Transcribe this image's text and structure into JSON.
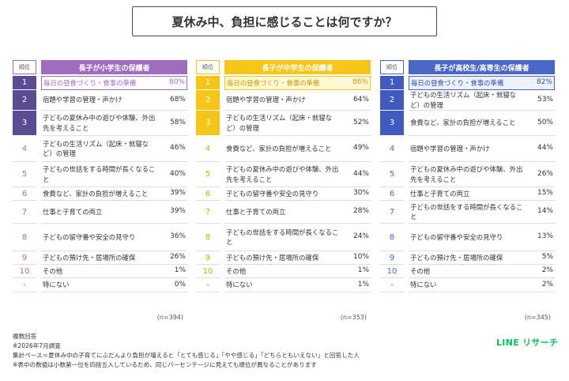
{
  "title": "夏休み中、負担に感じることは何ですか？",
  "rank_header": "順位",
  "panels": [
    {
      "title": "長子が小学生の保護者",
      "accent": "#a06cc0",
      "rank_bg": "#5b4b93",
      "first_text": "#a06cc0",
      "first_bg": "#ffffff",
      "rank_text": "#a06cc0",
      "n": "(n=394)",
      "rows": [
        {
          "rank": "1",
          "label": "毎日の昼食づくり・食事の準備",
          "pct": "80%"
        },
        {
          "rank": "2",
          "label": "宿題や学習の管理・声かけ",
          "pct": "68%"
        },
        {
          "rank": "3",
          "label": "子どもの夏休み中の遊びや体験、外出先を考えること",
          "pct": "58%"
        },
        {
          "rank": "4",
          "label": "子どもの生活リズム（起床・就寝など）の管理",
          "pct": "46%"
        },
        {
          "rank": "5",
          "label": "子どもの世話をする時間が長くなること",
          "pct": "40%"
        },
        {
          "rank": "6",
          "label": "食費など、家計の負担が増えること",
          "pct": "39%"
        },
        {
          "rank": "7",
          "label": "仕事と子育ての両立",
          "pct": "39%"
        },
        {
          "rank": "8",
          "label": "子どもの留守番や安全の見守り",
          "pct": "36%"
        },
        {
          "rank": "9",
          "label": "子どもの預け先・居場所の確保",
          "pct": "26%"
        },
        {
          "rank": "10",
          "label": "その他",
          "pct": "1%"
        },
        {
          "rank": "-",
          "label": "特にない",
          "pct": "0%"
        }
      ]
    },
    {
      "title": "長子が中学生の保護者",
      "accent": "#f5c518",
      "rank_bg": "#f5c518",
      "first_text": "#c99a00",
      "first_bg": "#fff8d6",
      "rank_text": "#d4a900",
      "n": "(n=353)",
      "rows": [
        {
          "rank": "1",
          "label": "毎日の昼食づくり・食事の準備",
          "pct": "86%"
        },
        {
          "rank": "2",
          "label": "宿題や学習の管理・声かけ",
          "pct": "64%"
        },
        {
          "rank": "3",
          "label": "子どもの生活リズム（起床・就寝など）の管理",
          "pct": "52%"
        },
        {
          "rank": "4",
          "label": "食費など、家計の負担が増えること",
          "pct": "49%"
        },
        {
          "rank": "5",
          "label": "子どもの夏休み中の遊びや体験、外出先を考えること",
          "pct": "44%"
        },
        {
          "rank": "6",
          "label": "子どもの留守番や安全の見守り",
          "pct": "30%"
        },
        {
          "rank": "7",
          "label": "仕事と子育ての両立",
          "pct": "28%"
        },
        {
          "rank": "8",
          "label": "子どもの世話をする時間が長くなること",
          "pct": "24%"
        },
        {
          "rank": "9",
          "label": "子どもの預け先・居場所の確保",
          "pct": "10%"
        },
        {
          "rank": "10",
          "label": "その他",
          "pct": "1%"
        },
        {
          "rank": "-",
          "label": "特にない",
          "pct": "1%"
        }
      ]
    },
    {
      "title": "長子が高校生/高専生の保護者",
      "accent": "#4a67c8",
      "rank_bg": "#3f5bc0",
      "first_text": "#2f4fb0",
      "first_bg": "#eef2fc",
      "rank_text": "#4a67c8",
      "n": "(n=345)",
      "rows": [
        {
          "rank": "1",
          "label": "毎日の昼食づくり・食事の準備",
          "pct": "82%"
        },
        {
          "rank": "2",
          "label": "子どもの生活リズム（起床・就寝など）の管理",
          "pct": "53%"
        },
        {
          "rank": "3",
          "label": "食費など、家計の負担が増えること",
          "pct": "50%"
        },
        {
          "rank": "4",
          "label": "宿題や学習の管理・声かけ",
          "pct": "44%"
        },
        {
          "rank": "5",
          "label": "子どもの夏休み中の遊びや体験、外出先を考えること",
          "pct": "26%"
        },
        {
          "rank": "6",
          "label": "仕事と子育ての両立",
          "pct": "15%"
        },
        {
          "rank": "7",
          "label": "子どもの世話をする時間が長くなること",
          "pct": "14%"
        },
        {
          "rank": "8",
          "label": "子どもの留守番や安全の見守り",
          "pct": "13%"
        },
        {
          "rank": "9",
          "label": "子どもの預け先・居場所の確保",
          "pct": "5%"
        },
        {
          "rank": "10",
          "label": "その他",
          "pct": "2%"
        },
        {
          "rank": "-",
          "label": "特にない",
          "pct": "2%"
        }
      ]
    }
  ],
  "notes": [
    "複数回答",
    "※2026年7月調査",
    "集計ベース＝夏休み中の子育てにふだんより負担が増えると「とても感じる」「やや感じる」「どちらともいえない」と回答した人",
    "※表中の数値は小数第一位を四捨五入しているため、同じパーセンテージに見えても順位が異なることがあります"
  ],
  "logo": "LINE リサーチ"
}
